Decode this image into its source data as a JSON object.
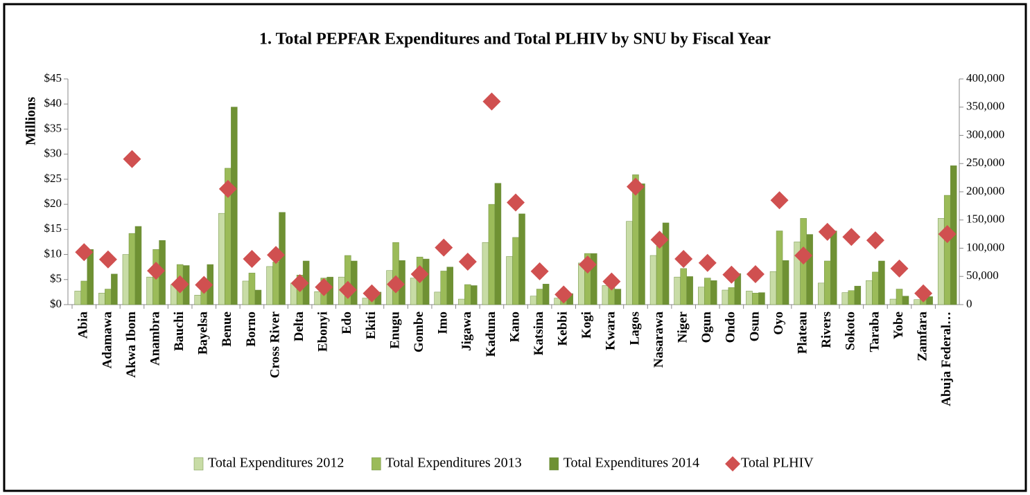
{
  "chart_data": {
    "type": "bar",
    "title": "1. Total PEPFAR Expenditures and Total PLHIV by SNU by Fiscal Year",
    "y_label": "Millions",
    "categories": [
      "Abia",
      "Adamawa",
      "Akwa Ibom",
      "Anambra",
      "Bauchi",
      "Bayelsa",
      "Benue",
      "Borno",
      "Cross River",
      "Delta",
      "Ebonyi",
      "Edo",
      "Ekiti",
      "Enugu",
      "Gombe",
      "Imo",
      "Jigawa",
      "Kaduna",
      "Kano",
      "Katsina",
      "Kebbi",
      "Kogi",
      "Kwara",
      "Lagos",
      "Nasarawa",
      "Niger",
      "Ogun",
      "Ondo",
      "Osun",
      "Oyo",
      "Plateau",
      "Rivers",
      "Sokoto",
      "Taraba",
      "Yobe",
      "Zamfara",
      "Abuja Federal…"
    ],
    "series": [
      {
        "name": "Total Expenditures 2012",
        "color": "#c8dca6",
        "values": [
          2.7,
          2.3,
          10,
          5.5,
          4,
          1.9,
          18.2,
          4.7,
          7.6,
          4.3,
          2.6,
          5.5,
          1.3,
          6.8,
          5.3,
          2.5,
          1.1,
          12.4,
          9.6,
          1.7,
          1.3,
          8.3,
          3.8,
          16.6,
          9.8,
          5.5,
          3.5,
          2.9,
          2.7,
          6.6,
          12.5,
          4.3,
          2.4,
          4.8,
          1.1,
          1,
          17.2
        ]
      },
      {
        "name": "Total Expenditures 2013",
        "color": "#9bbb59",
        "values": [
          4.7,
          3.1,
          14.2,
          11,
          8,
          4,
          27.2,
          6.3,
          8.5,
          5.9,
          5.3,
          9.8,
          2.4,
          12.4,
          9.5,
          6.7,
          4,
          20,
          13.4,
          3.1,
          2.2,
          10.2,
          3.4,
          25.9,
          11.7,
          7.2,
          5.3,
          3.4,
          2.3,
          14.7,
          17.2,
          8.7,
          2.8,
          6.5,
          3.1,
          1.2,
          21.8
        ]
      },
      {
        "name": "Total Expenditures 2014",
        "color": "#6f9133",
        "values": [
          11,
          6.1,
          15.6,
          12.8,
          7.8,
          8,
          39.4,
          2.9,
          18.4,
          8.7,
          5.5,
          8.7,
          2.5,
          8.8,
          9.1,
          7.5,
          3.8,
          24.2,
          18.1,
          4.1,
          2.2,
          10.2,
          3.1,
          24.1,
          16.3,
          5.6,
          4.8,
          6.2,
          2.4,
          8.8,
          14,
          14.7,
          3.7,
          8.7,
          1.7,
          1.6,
          27.7
        ]
      },
      {
        "name": "Total PLHIV",
        "color": "#d05050",
        "axis": "y2",
        "marker": "diamond",
        "values": [
          93000,
          80000,
          258000,
          60000,
          36000,
          35000,
          205000,
          81000,
          88000,
          38000,
          31000,
          26000,
          20000,
          36000,
          54000,
          101000,
          76000,
          360000,
          181000,
          59000,
          18000,
          71000,
          41000,
          209000,
          115000,
          81000,
          74000,
          53000,
          54000,
          185000,
          87000,
          129000,
          120000,
          114000,
          64000,
          20000,
          125000
        ]
      }
    ],
    "ylim": [
      0,
      45
    ],
    "yticks": [
      {
        "value": 0,
        "label": "$0"
      },
      {
        "value": 5,
        "label": "$5"
      },
      {
        "value": 10,
        "label": "$10"
      },
      {
        "value": 15,
        "label": "$15"
      },
      {
        "value": 20,
        "label": "$20"
      },
      {
        "value": 25,
        "label": "$25"
      },
      {
        "value": 30,
        "label": "$30"
      },
      {
        "value": 35,
        "label": "$35"
      },
      {
        "value": 40,
        "label": "$40"
      },
      {
        "value": 45,
        "label": "$45"
      }
    ],
    "y2lim": [
      0,
      400000
    ],
    "y2ticks": [
      0,
      {
        "value": 50000,
        "label": "50,000"
      },
      {
        "value": 100000,
        "label": "100,000"
      },
      {
        "value": 150000,
        "label": "150,000"
      },
      {
        "value": 200000,
        "label": "200,000"
      },
      {
        "value": 250000,
        "label": "250,000"
      },
      {
        "value": 300000,
        "label": "300,000"
      },
      {
        "value": 350000,
        "label": "350,000"
      },
      {
        "value": 400000,
        "label": "400,000"
      }
    ],
    "grid": false,
    "legend": "bottom"
  }
}
